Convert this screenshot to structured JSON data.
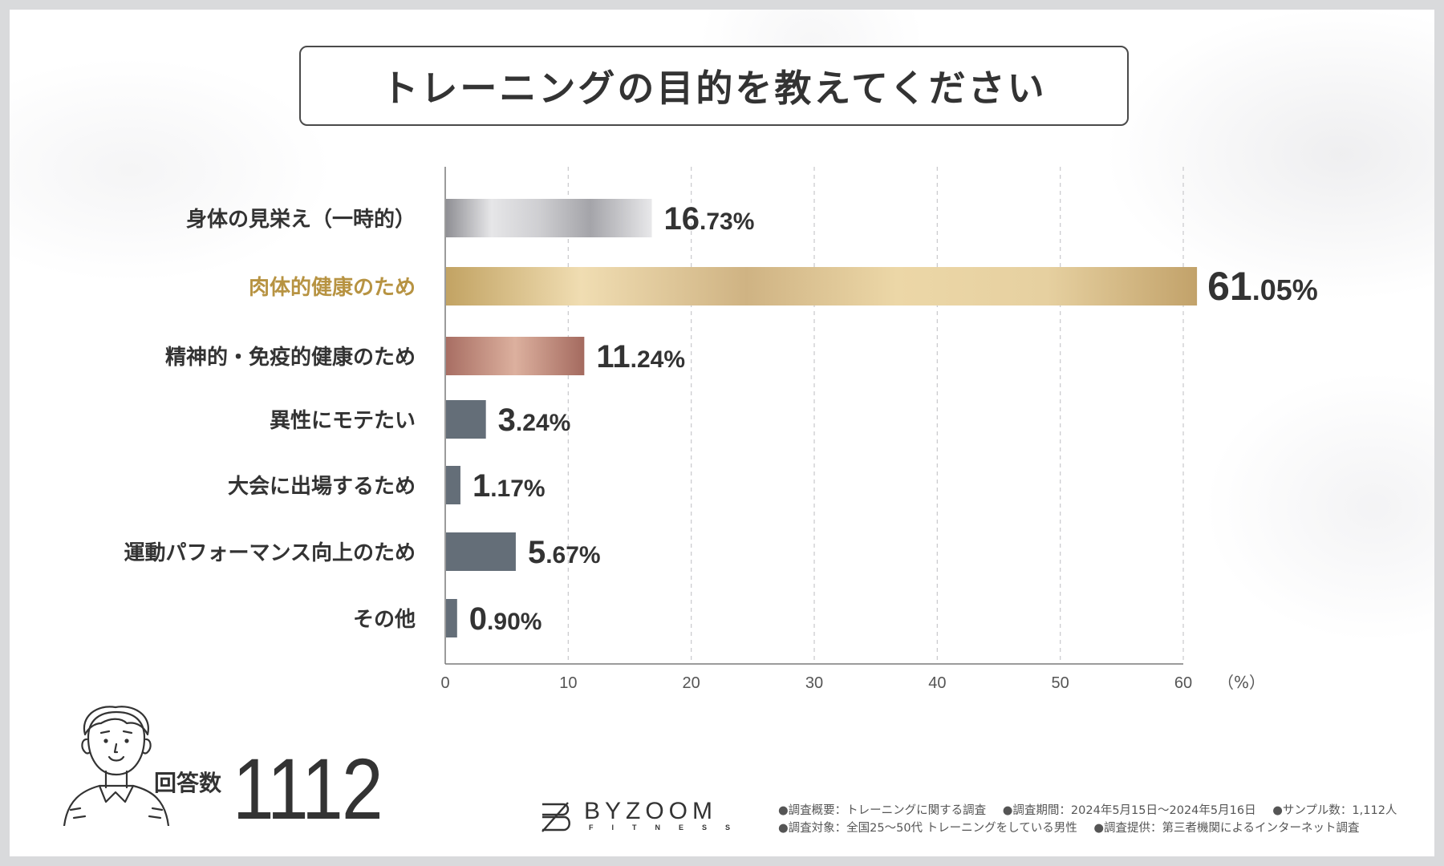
{
  "title": "トレーニングの目的を教えてください",
  "chart_data": {
    "type": "bar",
    "orientation": "horizontal",
    "title": "トレーニングの目的を教えてください",
    "categories": [
      "身体の見栄え（一時的）",
      "肉体的健康のため",
      "精神的・免疫的健康のため",
      "異性にモテたい",
      "大会に出場するため",
      "運動パフォーマンス向上のため",
      "その他"
    ],
    "values": [
      16.73,
      61.05,
      11.24,
      3.24,
      1.17,
      5.67,
      0.9
    ],
    "value_labels": [
      {
        "int": "16",
        "dec": ".73%"
      },
      {
        "int": "61",
        "dec": ".05%"
      },
      {
        "int": "11",
        "dec": ".24%"
      },
      {
        "int": "3",
        "dec": ".24%"
      },
      {
        "int": "1",
        "dec": ".17%"
      },
      {
        "int": "5",
        "dec": ".67%"
      },
      {
        "int": "0",
        "dec": ".90%"
      }
    ],
    "highlight_index": 1,
    "xlim": [
      0,
      60
    ],
    "xticks": [
      0,
      10,
      20,
      30,
      40,
      50,
      60
    ],
    "xtick_labels": [
      "0",
      "10",
      "20",
      "30",
      "40",
      "50",
      "60"
    ],
    "xunit_label": "（%）",
    "grid": true
  },
  "colors": {
    "silver_light": "#e4e4e6",
    "silver_dark": "#8d8d92",
    "gold_light": "#efdcb0",
    "gold_dark": "#c4a463",
    "rose_light": "#d8ab9a",
    "rose_dark": "#a97064",
    "slate": "#646e78",
    "highlight_text": "#b79342",
    "text": "#333333"
  },
  "respondents": {
    "label": "回答数",
    "count": "1112"
  },
  "logo": {
    "name": "BYZOOM",
    "sub": "FITNESS"
  },
  "notes": [
    "●調査概要：トレーニングに関する調査",
    "●調査期間：2024年5月15日～2024年5月16日",
    "●サンプル数：1,112人",
    "●調査対象：全国25～50代 トレーニングをしている男性",
    "●調査提供：第三者機関によるインターネット調査"
  ]
}
